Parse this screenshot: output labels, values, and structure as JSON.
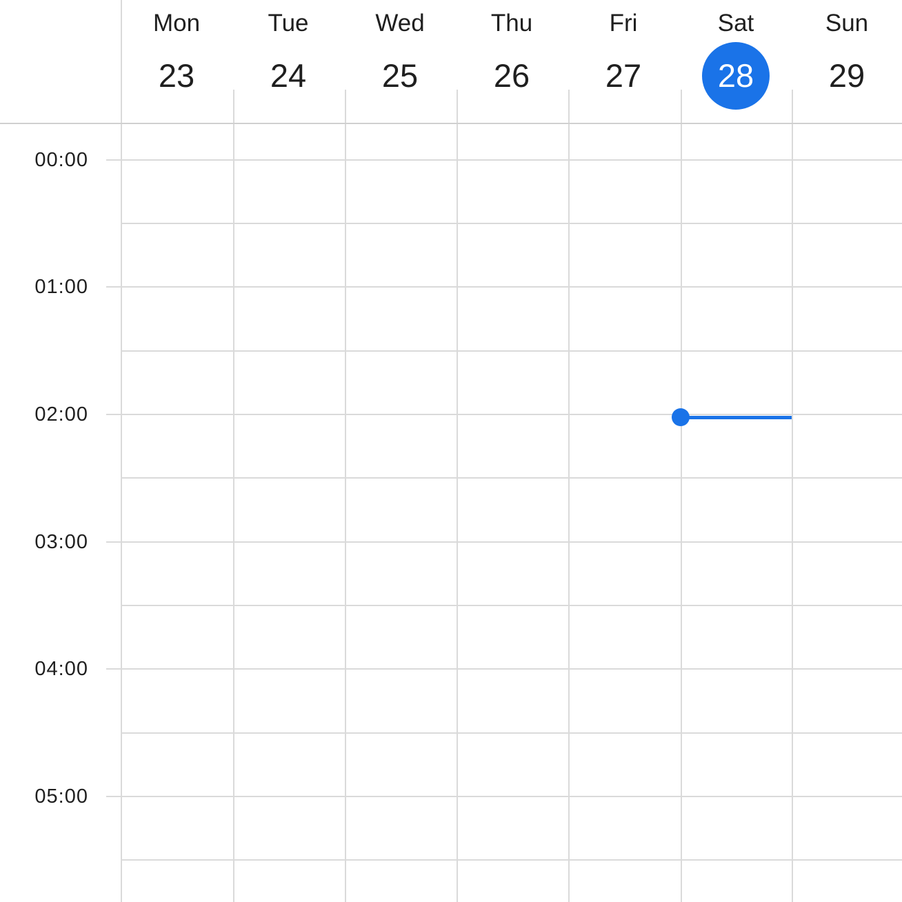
{
  "days": [
    {
      "name": "Mon",
      "date": "23",
      "today": false
    },
    {
      "name": "Tue",
      "date": "24",
      "today": false
    },
    {
      "name": "Wed",
      "date": "25",
      "today": false
    },
    {
      "name": "Thu",
      "date": "26",
      "today": false
    },
    {
      "name": "Fri",
      "date": "27",
      "today": false
    },
    {
      "name": "Sat",
      "date": "28",
      "today": true
    },
    {
      "name": "Sun",
      "date": "29",
      "today": false
    }
  ],
  "hours": [
    "00:00",
    "01:00",
    "02:00",
    "03:00",
    "04:00",
    "05:00"
  ],
  "colors": {
    "accent": "#1a73e8",
    "grid": "#dadada",
    "text": "#1f1f1f"
  },
  "current_time_indicator": {
    "day": "Sat",
    "time": "02:00"
  }
}
